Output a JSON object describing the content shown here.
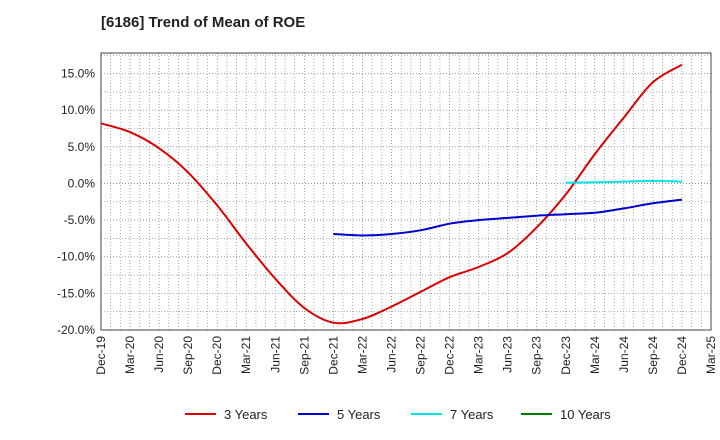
{
  "chart_data": {
    "type": "line",
    "title": "[6186]  Trend of Mean of ROE",
    "xlabel": "",
    "ylabel": "",
    "x_ticks": [
      "Dec-19",
      "Mar-20",
      "Jun-20",
      "Sep-20",
      "Dec-20",
      "Mar-21",
      "Jun-21",
      "Sep-21",
      "Dec-21",
      "Mar-22",
      "Jun-22",
      "Sep-22",
      "Dec-22",
      "Mar-23",
      "Jun-23",
      "Sep-23",
      "Dec-23",
      "Mar-24",
      "Jun-24",
      "Sep-24",
      "Dec-24",
      "Mar-25"
    ],
    "y_ticks": [
      15,
      10,
      5,
      0,
      -5,
      -10,
      -15,
      -20
    ],
    "y_tick_labels": [
      "15.0%",
      "10.0%",
      "5.0%",
      "0.0%",
      "-5.0%",
      "-10.0%",
      "-15.0%",
      "-20.0%"
    ],
    "ylim": [
      -20,
      17.8
    ],
    "grid": true,
    "legend_position": "bottom",
    "series": [
      {
        "name": "3 Years",
        "color": "#dd0000",
        "x": [
          "Dec-19",
          "Mar-20",
          "Jun-20",
          "Sep-20",
          "Dec-20",
          "Mar-21",
          "Jun-21",
          "Sep-21",
          "Dec-21",
          "Mar-22",
          "Jun-22",
          "Sep-22",
          "Dec-22",
          "Mar-23",
          "Jun-23",
          "Sep-23",
          "Dec-23",
          "Mar-24",
          "Jun-24",
          "Sep-24",
          "Dec-24"
        ],
        "values": [
          8.2,
          7.0,
          4.8,
          1.5,
          -3.0,
          -8.2,
          -13.0,
          -17.0,
          -19.0,
          -18.5,
          -16.8,
          -14.8,
          -12.8,
          -11.4,
          -9.5,
          -6.0,
          -1.5,
          4.0,
          9.0,
          13.8,
          16.2
        ]
      },
      {
        "name": "5 Years",
        "color": "#0000cc",
        "x": [
          "Dec-21",
          "Mar-22",
          "Jun-22",
          "Sep-22",
          "Dec-22",
          "Mar-23",
          "Jun-23",
          "Sep-23",
          "Dec-23",
          "Mar-24",
          "Jun-24",
          "Sep-24",
          "Dec-24"
        ],
        "values": [
          -6.9,
          -7.1,
          -6.9,
          -6.4,
          -5.5,
          -5.0,
          -4.7,
          -4.4,
          -4.2,
          -4.0,
          -3.4,
          -2.7,
          -2.2
        ]
      },
      {
        "name": "7 Years",
        "color": "#00e5e5",
        "x": [
          "Dec-23",
          "Mar-24",
          "Jun-24",
          "Sep-24",
          "Dec-24"
        ],
        "values": [
          0.1,
          0.15,
          0.25,
          0.35,
          0.25
        ]
      },
      {
        "name": "10 Years",
        "color": "#008000",
        "x": [],
        "values": []
      }
    ]
  }
}
